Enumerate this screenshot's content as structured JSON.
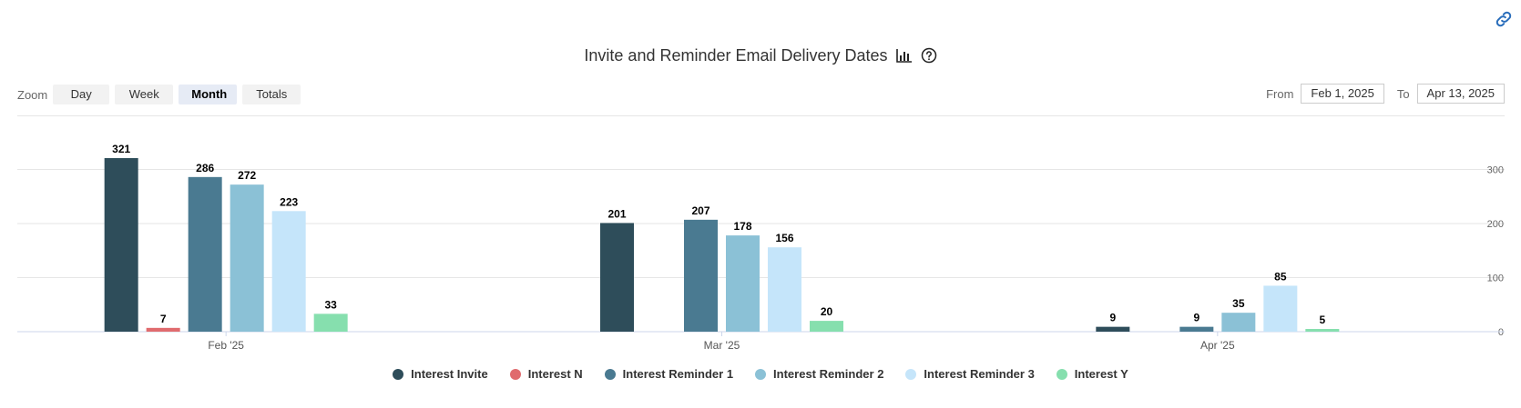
{
  "title": "Invite and Reminder Email Delivery Dates",
  "zoom": {
    "label": "Zoom",
    "buttons": [
      "Day",
      "Week",
      "Month",
      "Totals"
    ],
    "selected": "Month"
  },
  "range": {
    "from_label": "From",
    "from_value": "Feb 1, 2025",
    "to_label": "To",
    "to_value": "Apr 13, 2025"
  },
  "chart_data": {
    "type": "bar",
    "title": "Invite and Reminder Email Delivery Dates",
    "categories": [
      "Feb '25",
      "Mar '25",
      "Apr '25"
    ],
    "ylim": [
      0,
      350
    ],
    "yticks": [
      0,
      100,
      200,
      300
    ],
    "grid": true,
    "legend_position": "bottom",
    "series": [
      {
        "name": "Interest Invite",
        "color": "#2e4d5a",
        "values": [
          321,
          201,
          9
        ]
      },
      {
        "name": "Interest N",
        "color": "#e06b6e",
        "values": [
          7,
          null,
          null
        ]
      },
      {
        "name": "Interest Reminder 1",
        "color": "#4a7a91",
        "values": [
          286,
          207,
          9
        ]
      },
      {
        "name": "Interest Reminder 2",
        "color": "#8bc1d6",
        "values": [
          272,
          178,
          35
        ]
      },
      {
        "name": "Interest Reminder 3",
        "color": "#c5e5fa",
        "values": [
          223,
          156,
          85
        ]
      },
      {
        "name": "Interest Y",
        "color": "#86dfae",
        "values": [
          33,
          20,
          5
        ]
      }
    ]
  }
}
